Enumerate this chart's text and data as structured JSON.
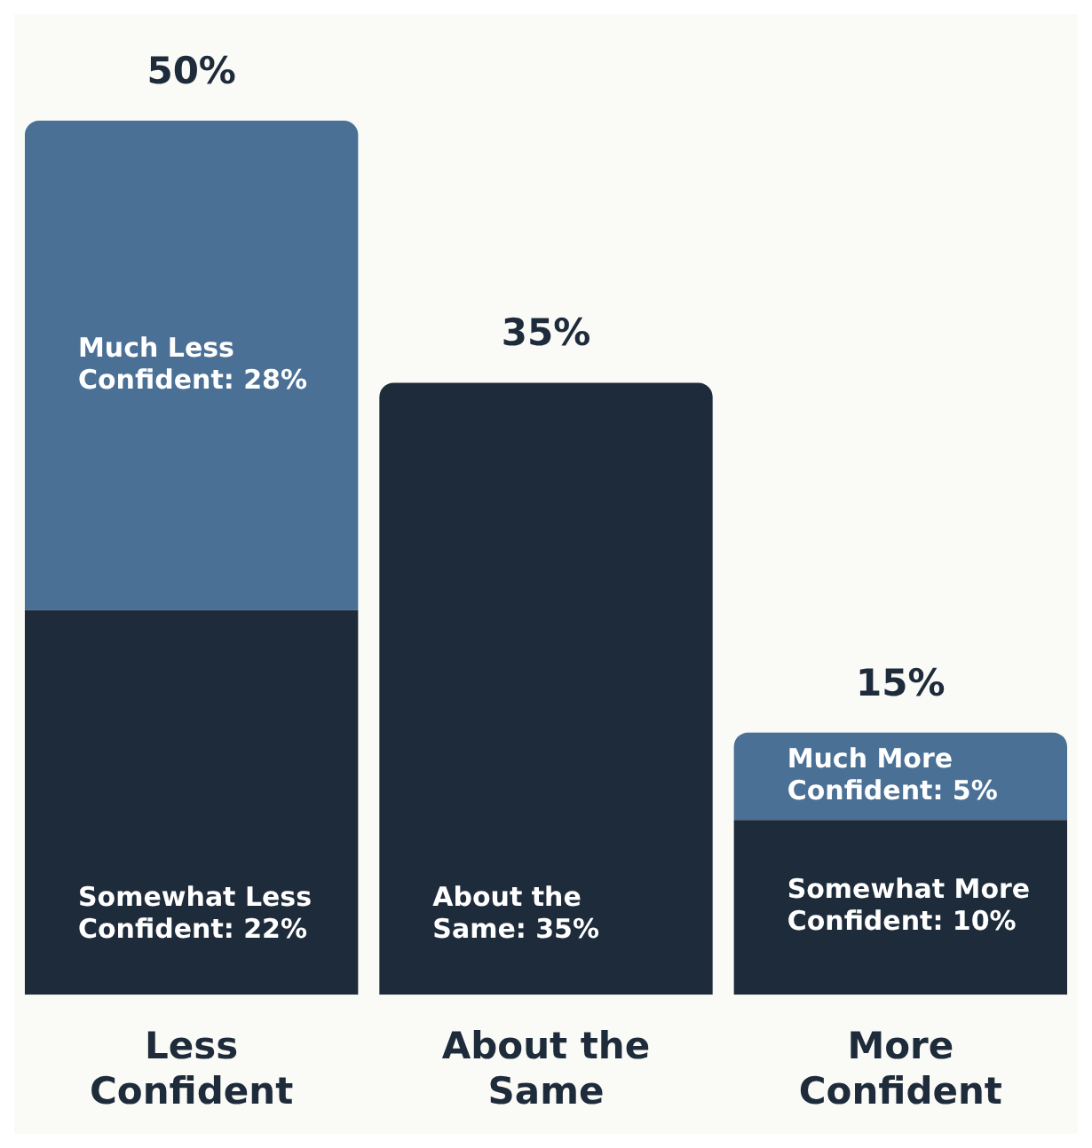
{
  "chart_data": {
    "type": "bar",
    "stacked": true,
    "categories": [
      "Less Confident",
      "About the Same",
      "More Confident"
    ],
    "series": [
      {
        "color": "#1e2b3a",
        "values": [
          22,
          35,
          10
        ],
        "value_labels": [
          "Somewhat Less Confident: 22%",
          "About the Same: 35%",
          "Somewhat More Confident: 10%"
        ]
      },
      {
        "color": "#4a7096",
        "values": [
          28,
          null,
          5
        ],
        "value_labels": [
          "Much Less Confident: 28%",
          null,
          "Much More Confident: 5%"
        ]
      }
    ],
    "totals": [
      "50%",
      "35%",
      "15%"
    ]
  }
}
